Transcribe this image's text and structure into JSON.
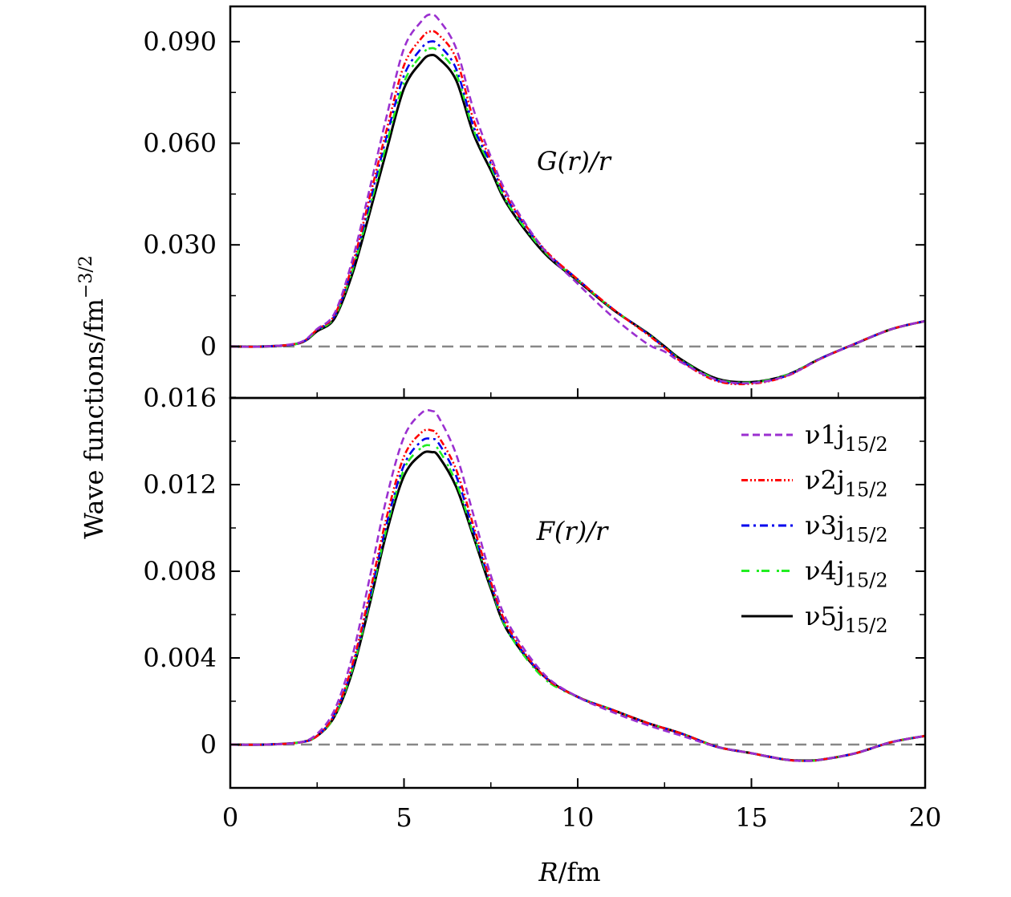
{
  "chart_data": [
    {
      "type": "line",
      "panel": "top",
      "annotation": "G(r)/r",
      "xlim": [
        0,
        20
      ],
      "ylim": [
        -0.0152,
        0.1004
      ],
      "yticks": [
        0,
        0.03,
        0.06,
        0.09
      ],
      "ytick_labels": [
        "0",
        "0.030",
        "0.060",
        "0.090"
      ],
      "yminor_step": 0.015,
      "zero_line": true,
      "x": [
        0,
        1,
        2,
        2.5,
        3,
        3.5,
        4,
        4.5,
        5,
        5.5,
        5.75,
        6,
        6.5,
        7,
        7.5,
        8,
        9,
        10,
        11,
        12,
        12.5,
        13,
        14,
        15,
        16,
        17,
        17.8,
        19,
        20
      ],
      "series": [
        {
          "name": "ν1j15/2",
          "color": "#9b30d0",
          "values": [
            0,
            0,
            0.0012,
            0.0052,
            0.0098,
            0.025,
            0.046,
            0.068,
            0.088,
            0.096,
            0.098,
            0.0965,
            0.088,
            0.07,
            0.056,
            0.0445,
            0.029,
            0.0185,
            0.0088,
            0.0008,
            -0.0015,
            -0.0048,
            -0.0098,
            -0.0108,
            -0.0087,
            -0.0036,
            0,
            0.005,
            0.0075
          ]
        },
        {
          "name": "ν2j15/2",
          "color": "#ff0000",
          "values": [
            0,
            0,
            0.0011,
            0.005,
            0.0093,
            0.0235,
            0.0435,
            0.064,
            0.083,
            0.091,
            0.093,
            0.092,
            0.085,
            0.067,
            0.055,
            0.0435,
            0.0292,
            0.0198,
            0.0112,
            0.0036,
            -0.0004,
            -0.0046,
            -0.0102,
            -0.011,
            -0.0088,
            -0.0036,
            0,
            0.005,
            0.0075
          ]
        },
        {
          "name": "ν3j15/2",
          "color": "#0000ee",
          "values": [
            0,
            0,
            0.001,
            0.0049,
            0.009,
            0.0228,
            0.042,
            0.062,
            0.08,
            0.088,
            0.09,
            0.089,
            0.082,
            0.065,
            0.054,
            0.043,
            0.029,
            0.0198,
            0.0112,
            0.0038,
            -0.0003,
            -0.0044,
            -0.01,
            -0.0108,
            -0.0087,
            -0.0035,
            0,
            0.005,
            0.0075
          ]
        },
        {
          "name": "ν4j15/2",
          "color": "#22ee22",
          "values": [
            0,
            0,
            0.001,
            0.0047,
            0.0087,
            0.022,
            0.0405,
            0.06,
            0.078,
            0.086,
            0.088,
            0.087,
            0.0805,
            0.064,
            0.053,
            0.042,
            0.0285,
            0.0196,
            0.0111,
            0.0039,
            -0.0002,
            -0.0042,
            -0.0097,
            -0.0106,
            -0.0085,
            -0.0035,
            0,
            0.005,
            0.0075
          ]
        },
        {
          "name": "ν5j15/2",
          "color": "#000000",
          "values": [
            0,
            0,
            0.001,
            0.0045,
            0.0083,
            0.021,
            0.039,
            0.058,
            0.0762,
            0.084,
            0.086,
            0.085,
            0.0786,
            0.0628,
            0.052,
            0.0415,
            0.028,
            0.0194,
            0.011,
            0.004,
            0,
            -0.004,
            -0.0095,
            -0.0105,
            -0.0085,
            -0.0035,
            0,
            0.005,
            0.0075
          ]
        }
      ]
    },
    {
      "type": "line",
      "panel": "bottom",
      "annotation": "F(r)/r",
      "xlim": [
        0,
        20
      ],
      "ylim": [
        -0.002,
        0.016
      ],
      "yticks": [
        0,
        0.004,
        0.008,
        0.012,
        0.016
      ],
      "ytick_labels": [
        "0",
        "0.004",
        "0.008",
        "0.012",
        "0.016"
      ],
      "yminor_step": 0.002,
      "zero_line": true,
      "x": [
        0,
        1,
        2,
        2.5,
        3,
        3.5,
        4,
        4.5,
        5,
        5.5,
        5.8,
        6,
        6.5,
        7,
        7.5,
        8,
        9,
        10,
        11,
        12,
        13,
        14,
        15,
        16,
        16.6,
        17,
        18,
        19,
        20
      ],
      "series": [
        {
          "name": "ν1j15/2",
          "color": "#9b30d0",
          "values": [
            0,
            0,
            0.0001,
            0.0005,
            0.0016,
            0.004,
            0.0076,
            0.0114,
            0.0142,
            0.0153,
            0.0154,
            0.0151,
            0.0134,
            0.0106,
            0.0078,
            0.0056,
            0.0033,
            0.0022,
            0.0015,
            0.0009,
            0.0004,
            -0.0001,
            -0.0004,
            -0.0007,
            -0.00075,
            -0.0007,
            -0.0004,
            0.0001,
            0.0004
          ]
        },
        {
          "name": "ν2j15/2",
          "color": "#ff0000",
          "values": [
            0,
            0,
            0.0001,
            0.0004,
            0.0014,
            0.0036,
            0.0069,
            0.0105,
            0.0133,
            0.0144,
            0.0145,
            0.0142,
            0.0127,
            0.0101,
            0.0075,
            0.0054,
            0.0032,
            0.0022,
            0.0016,
            0.001,
            0.0005,
            -0.0001,
            -0.0004,
            -0.0007,
            -0.00075,
            -0.0007,
            -0.0004,
            0.0001,
            0.0004
          ]
        },
        {
          "name": "ν3j15/2",
          "color": "#0000ee",
          "values": [
            0,
            0,
            0.0001,
            0.0004,
            0.0014,
            0.0035,
            0.0067,
            0.0102,
            0.0129,
            0.014,
            0.0141,
            0.0139,
            0.0124,
            0.0099,
            0.0074,
            0.0053,
            0.0032,
            0.0022,
            0.0016,
            0.001,
            0.0005,
            -0.0001,
            -0.0004,
            -0.0007,
            -0.00075,
            -0.0007,
            -0.0004,
            0.0001,
            0.0004
          ]
        },
        {
          "name": "ν4j15/2",
          "color": "#22ee22",
          "values": [
            0,
            0,
            0.0001,
            0.0004,
            0.0013,
            0.0034,
            0.0065,
            0.01,
            0.0127,
            0.0137,
            0.0138,
            0.0136,
            0.0121,
            0.0097,
            0.0073,
            0.0052,
            0.0031,
            0.0022,
            0.0016,
            0.001,
            0.0005,
            -0.0001,
            -0.0004,
            -0.0007,
            -0.00075,
            -0.0007,
            -0.0004,
            0.0001,
            0.0004
          ]
        },
        {
          "name": "ν5j15/2",
          "color": "#000000",
          "values": [
            0,
            0,
            0.0001,
            0.0004,
            0.0013,
            0.0033,
            0.0064,
            0.0098,
            0.0124,
            0.0134,
            0.0135,
            0.0133,
            0.0119,
            0.0096,
            0.0072,
            0.0052,
            0.0032,
            0.0022,
            0.0016,
            0.001,
            0.0005,
            -0.0001,
            -0.0004,
            -0.0007,
            -0.00074,
            -0.0007,
            -0.0004,
            0.0001,
            0.0004
          ]
        }
      ]
    }
  ],
  "xaxis": {
    "ticks": [
      0,
      5,
      10,
      15,
      20
    ],
    "tick_labels": [
      "0",
      "5",
      "10",
      "15",
      "20"
    ],
    "minor_step": 2.5,
    "label_var": "R",
    "label_unit": "/fm"
  },
  "yaxis": {
    "label_main": "Wave functions/fm",
    "label_sup": "−3/2"
  },
  "legend": {
    "placement": "right of bottom panel",
    "items": [
      {
        "prefix": "ν1j",
        "sub": "15/2"
      },
      {
        "prefix": "ν2j",
        "sub": "15/2"
      },
      {
        "prefix": "ν3j",
        "sub": "15/2"
      },
      {
        "prefix": "ν4j",
        "sub": "15/2"
      },
      {
        "prefix": "ν5j",
        "sub": "15/2"
      }
    ]
  },
  "styles": {
    "dash": [
      "9,5",
      "8,3,2,3,2,3",
      "10,5,3,5",
      "10,9,3,3",
      ""
    ],
    "zero_line_color": "#888888"
  }
}
